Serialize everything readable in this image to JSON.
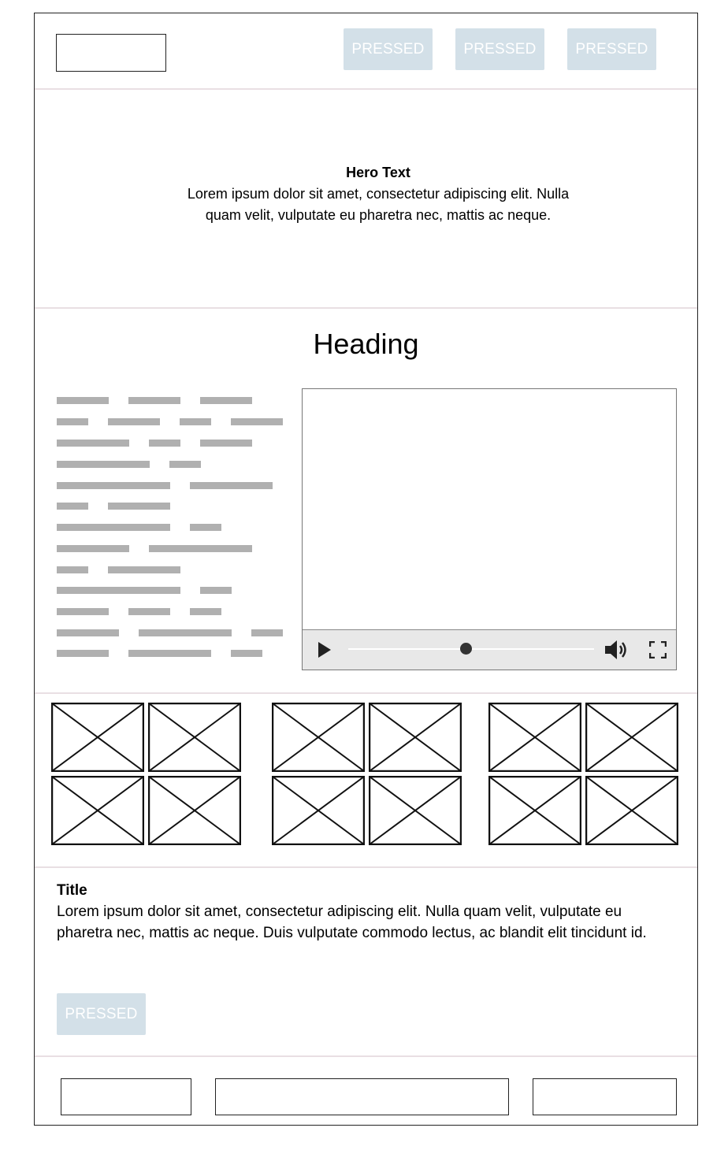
{
  "header": {
    "logo_placeholder": "",
    "nav_buttons": [
      "PRESSED",
      "PRESSED",
      "PRESSED"
    ]
  },
  "hero": {
    "title": "Hero Text",
    "body": "Lorem ipsum dolor sit amet, consectetur adipiscing elit. Nulla quam velit, vulputate eu pharetra nec, mattis ac neque."
  },
  "content": {
    "heading": "Heading",
    "video": {
      "play_icon": "play-icon",
      "volume_icon": "volume-icon",
      "fullscreen_icon": "fullscreen-icon",
      "progress": 0.48
    }
  },
  "gallery": {
    "groups": 3,
    "images_per_group": 4
  },
  "article": {
    "title": "Title",
    "body": "Lorem ipsum dolor sit amet, consectetur adipiscing elit. Nulla quam velit, vulputate eu pharetra nec, mattis ac neque. Duis vulputate commodo lectus, ac blandit elit tincidunt id.",
    "button_label": "PRESSED"
  },
  "colors": {
    "button_bg": "#d3e0e8",
    "separator": "#e9dfe3",
    "text_bar": "#b0b0b0"
  }
}
